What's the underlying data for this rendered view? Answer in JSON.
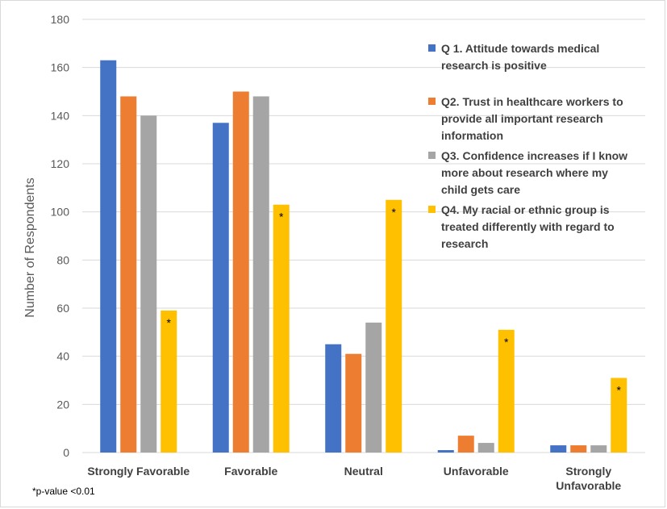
{
  "chart_data": {
    "type": "bar",
    "ylabel": "Number of Respondents",
    "ylim": [
      0,
      180
    ],
    "yticks": [
      0,
      20,
      40,
      60,
      80,
      100,
      120,
      140,
      160,
      180
    ],
    "grid": true,
    "legend_position": "right",
    "categories": [
      [
        "Strongly Favorable"
      ],
      [
        "Favorable"
      ],
      [
        "Neutral"
      ],
      [
        "Unfavorable"
      ],
      [
        "Strongly",
        "Unfavorable"
      ]
    ],
    "series": [
      {
        "name_lines": [
          "Q 1. Attitude towards medical",
          "research is positive"
        ],
        "color": "#4472c4",
        "values": [
          163,
          137,
          45,
          1,
          3
        ],
        "stars": [
          false,
          false,
          false,
          false,
          false
        ]
      },
      {
        "name_lines": [
          "Q2. Trust in healthcare workers to",
          "provide all important research",
          "information"
        ],
        "color": "#ed7d31",
        "values": [
          148,
          150,
          41,
          7,
          3
        ],
        "stars": [
          false,
          false,
          false,
          false,
          false
        ]
      },
      {
        "name_lines": [
          "Q3. Confidence increases if I know",
          "more about research where my",
          "child gets care"
        ],
        "color": "#a5a5a5",
        "values": [
          140,
          148,
          54,
          4,
          3
        ],
        "stars": [
          false,
          false,
          false,
          false,
          false
        ]
      },
      {
        "name_lines": [
          "Q4. My racial or ethnic group is",
          "treated differently with regard to",
          "research"
        ],
        "color": "#ffc000",
        "values": [
          59,
          103,
          105,
          51,
          31
        ],
        "stars": [
          true,
          true,
          true,
          true,
          true
        ]
      }
    ],
    "star_symbol": "*",
    "footnote": "*p-value <0.01"
  }
}
